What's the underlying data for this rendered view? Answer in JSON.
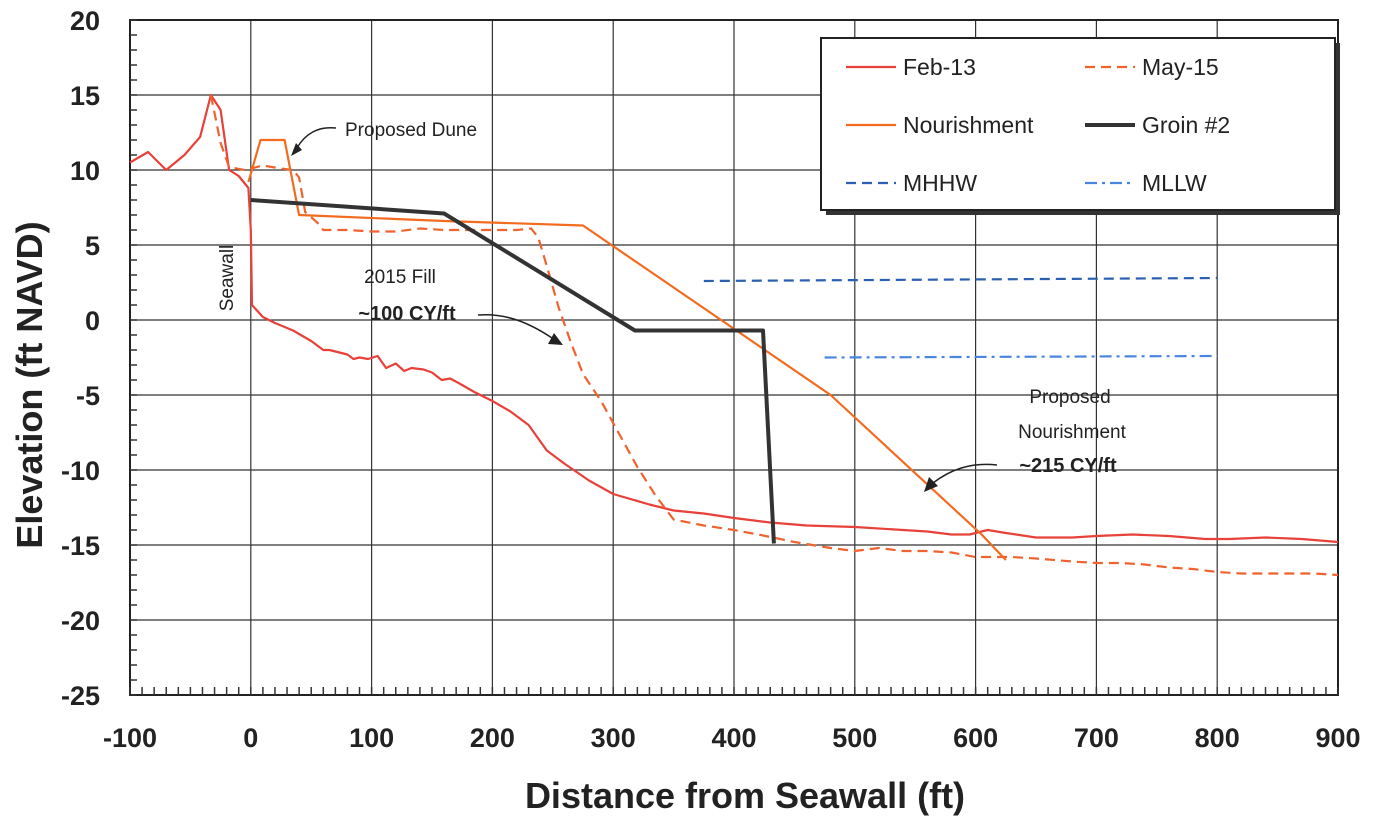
{
  "chart_data": {
    "type": "line",
    "xlabel": "Distance from Seawall (ft)",
    "ylabel": "Elevation (ft NAVD)",
    "xlim": [
      -100,
      900
    ],
    "ylim": [
      -25,
      20
    ],
    "xticks": [
      -100,
      0,
      100,
      200,
      300,
      400,
      500,
      600,
      700,
      800,
      900
    ],
    "yticks": [
      20,
      15,
      10,
      5,
      0,
      -5,
      -10,
      -15,
      -20,
      -25
    ],
    "grid": true,
    "legend_position": "top-right",
    "series": [
      {
        "name": "Feb-13",
        "color": "#e8413a",
        "style": "solid",
        "points": [
          [
            -100,
            10.5
          ],
          [
            -85,
            11.2
          ],
          [
            -70,
            10
          ],
          [
            -55,
            11
          ],
          [
            -42,
            12.2
          ],
          [
            -33,
            15
          ],
          [
            -25,
            14
          ],
          [
            -18,
            10
          ],
          [
            -10,
            9.6
          ],
          [
            -2,
            8.8
          ],
          [
            0,
            6
          ],
          [
            1,
            1
          ],
          [
            10,
            0.2
          ],
          [
            20,
            -0.2
          ],
          [
            35,
            -0.7
          ],
          [
            50,
            -1.4
          ],
          [
            60,
            -2
          ],
          [
            65,
            -2
          ],
          [
            70,
            -2.1
          ],
          [
            75,
            -2.2
          ],
          [
            80,
            -2.3
          ],
          [
            85,
            -2.6
          ],
          [
            90,
            -2.5
          ],
          [
            97,
            -2.6
          ],
          [
            105,
            -2.4
          ],
          [
            112,
            -3.2
          ],
          [
            120,
            -2.9
          ],
          [
            127,
            -3.4
          ],
          [
            133,
            -3.2
          ],
          [
            143,
            -3.3
          ],
          [
            150,
            -3.5
          ],
          [
            158,
            -4
          ],
          [
            165,
            -3.9
          ],
          [
            172,
            -4.2
          ],
          [
            185,
            -4.8
          ],
          [
            200,
            -5.4
          ],
          [
            215,
            -6.1
          ],
          [
            230,
            -7
          ],
          [
            245,
            -8.7
          ],
          [
            260,
            -9.6
          ],
          [
            280,
            -10.7
          ],
          [
            300,
            -11.6
          ],
          [
            330,
            -12.3
          ],
          [
            350,
            -12.7
          ],
          [
            375,
            -12.9
          ],
          [
            400,
            -13.2
          ],
          [
            430,
            -13.5
          ],
          [
            460,
            -13.7
          ],
          [
            500,
            -13.8
          ],
          [
            540,
            -14
          ],
          [
            560,
            -14.1
          ],
          [
            580,
            -14.3
          ],
          [
            595,
            -14.3
          ],
          [
            610,
            -14
          ],
          [
            625,
            -14.2
          ],
          [
            650,
            -14.5
          ],
          [
            680,
            -14.5
          ],
          [
            700,
            -14.4
          ],
          [
            730,
            -14.3
          ],
          [
            760,
            -14.4
          ],
          [
            790,
            -14.6
          ],
          [
            810,
            -14.6
          ],
          [
            840,
            -14.5
          ],
          [
            870,
            -14.6
          ],
          [
            900,
            -14.8
          ]
        ]
      },
      {
        "name": "May-15",
        "color": "#f0622e",
        "style": "dashed",
        "points": [
          [
            -33,
            15
          ],
          [
            -25,
            11.8
          ],
          [
            -18,
            10.2
          ],
          [
            -5,
            10
          ],
          [
            10,
            10.3
          ],
          [
            25,
            10.1
          ],
          [
            35,
            10
          ],
          [
            40,
            9.5
          ],
          [
            45,
            7.2
          ],
          [
            55,
            6.5
          ],
          [
            60,
            6
          ],
          [
            80,
            6
          ],
          [
            100,
            5.9
          ],
          [
            120,
            5.9
          ],
          [
            140,
            6.1
          ],
          [
            160,
            6
          ],
          [
            180,
            6
          ],
          [
            200,
            6
          ],
          [
            220,
            6
          ],
          [
            232,
            6.1
          ],
          [
            238,
            5.5
          ],
          [
            245,
            3.6
          ],
          [
            255,
            0.8
          ],
          [
            265,
            -1.5
          ],
          [
            275,
            -3.6
          ],
          [
            290,
            -5.4
          ],
          [
            305,
            -7.6
          ],
          [
            320,
            -9.8
          ],
          [
            335,
            -11.7
          ],
          [
            350,
            -13.3
          ],
          [
            375,
            -13.7
          ],
          [
            400,
            -14
          ],
          [
            420,
            -14.3
          ],
          [
            450,
            -14.8
          ],
          [
            480,
            -15.2
          ],
          [
            500,
            -15.4
          ],
          [
            520,
            -15.2
          ],
          [
            540,
            -15.4
          ],
          [
            560,
            -15.4
          ],
          [
            580,
            -15.5
          ],
          [
            600,
            -15.8
          ],
          [
            630,
            -15.8
          ],
          [
            650,
            -15.9
          ],
          [
            680,
            -16.1
          ],
          [
            700,
            -16.2
          ],
          [
            720,
            -16.2
          ],
          [
            740,
            -16.3
          ],
          [
            760,
            -16.5
          ],
          [
            780,
            -16.6
          ],
          [
            800,
            -16.8
          ],
          [
            820,
            -16.9
          ],
          [
            840,
            -16.9
          ],
          [
            860,
            -16.9
          ],
          [
            880,
            -16.9
          ],
          [
            900,
            -17
          ]
        ]
      },
      {
        "name": "Nourishment",
        "color": "#f26b1f",
        "style": "solid",
        "points": [
          [
            -2,
            9.2
          ],
          [
            8,
            12
          ],
          [
            28,
            12
          ],
          [
            40,
            7
          ],
          [
            160,
            6.6
          ],
          [
            275,
            6.3
          ],
          [
            480,
            -5
          ],
          [
            605,
            -14.3
          ],
          [
            625,
            -16
          ]
        ]
      },
      {
        "name": "Groin #2",
        "color": "#333333",
        "style": "solid-thick",
        "points": [
          [
            0,
            8
          ],
          [
            160,
            7.1
          ],
          [
            318,
            -0.7
          ],
          [
            424,
            -0.7
          ],
          [
            433,
            -14.9
          ]
        ]
      },
      {
        "name": "MHHW",
        "color": "#2b5fb4",
        "style": "dashed",
        "points": [
          [
            375,
            2.6
          ],
          [
            800,
            2.8
          ]
        ]
      },
      {
        "name": "MLLW",
        "color": "#4a86e0",
        "style": "dash-dot",
        "points": [
          [
            475,
            -2.5
          ],
          [
            800,
            -2.4
          ]
        ]
      }
    ],
    "annotations": {
      "proposed_dune": "Proposed Dune",
      "seawall": "Seawall",
      "fill_2015_line1": "2015 Fill",
      "fill_2015_line2": "~100 CY/ft",
      "proposed_nourishment_line1": "Proposed",
      "proposed_nourishment_line2": "Nourishment",
      "proposed_nourishment_line3": "~215 CY/ft"
    }
  }
}
